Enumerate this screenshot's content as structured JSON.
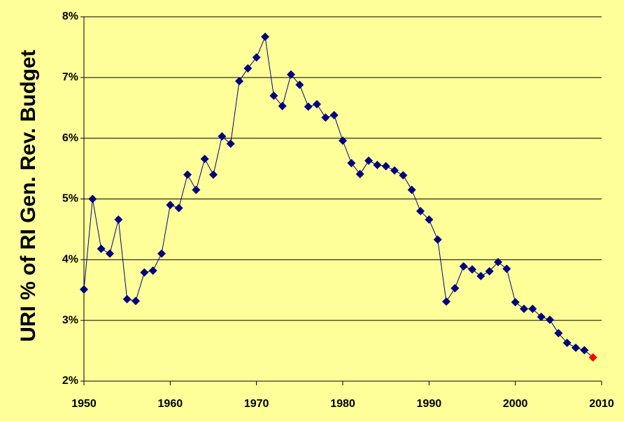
{
  "chart_data": {
    "type": "line",
    "y_label": "URI % of RI Gen. Rev. Budget",
    "x": [
      1950,
      1951,
      1952,
      1953,
      1954,
      1955,
      1956,
      1957,
      1958,
      1959,
      1960,
      1961,
      1962,
      1963,
      1964,
      1965,
      1966,
      1967,
      1968,
      1969,
      1970,
      1971,
      1972,
      1973,
      1974,
      1975,
      1976,
      1977,
      1978,
      1979,
      1980,
      1981,
      1982,
      1983,
      1984,
      1985,
      1986,
      1987,
      1988,
      1989,
      1990,
      1991,
      1992,
      1993,
      1994,
      1995,
      1996,
      1997,
      1998,
      1999,
      2000,
      2001,
      2002,
      2003,
      2004,
      2005,
      2006,
      2007,
      2008,
      2009
    ],
    "values": [
      3.51,
      5.0,
      4.18,
      4.1,
      4.66,
      3.35,
      3.32,
      3.79,
      3.82,
      4.1,
      4.9,
      4.85,
      5.4,
      5.15,
      5.66,
      5.4,
      6.03,
      5.91,
      6.94,
      7.15,
      7.33,
      7.67,
      6.7,
      6.53,
      7.05,
      6.88,
      6.52,
      6.56,
      6.34,
      6.38,
      5.96,
      5.59,
      5.41,
      5.63,
      5.56,
      5.54,
      5.47,
      5.39,
      5.15,
      4.8,
      4.66,
      4.33,
      3.31,
      3.53,
      3.89,
      3.84,
      3.73,
      3.81,
      3.96,
      3.85,
      3.3,
      3.19,
      3.19,
      3.06,
      3.01,
      2.79,
      2.63,
      2.55,
      2.51,
      2.39
    ],
    "color": "#000080",
    "last_point_color": "#ff0000",
    "xlim": [
      1950,
      2010
    ],
    "xticks": [
      1950,
      1960,
      1970,
      1980,
      1990,
      2000,
      2010
    ],
    "ylim": [
      2,
      8
    ],
    "yticks": [
      {
        "value": 2,
        "label": "2%"
      },
      {
        "value": 3,
        "label": "3%"
      },
      {
        "value": 4,
        "label": "4%"
      },
      {
        "value": 5,
        "label": "5%"
      },
      {
        "value": 6,
        "label": "6%"
      },
      {
        "value": 7,
        "label": "7%"
      },
      {
        "value": 8,
        "label": "8%"
      }
    ],
    "grid": true
  }
}
